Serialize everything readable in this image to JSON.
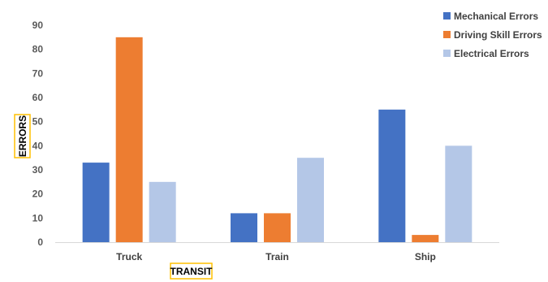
{
  "chart_data": {
    "type": "bar",
    "categories": [
      "Truck",
      "Train",
      "Ship"
    ],
    "series": [
      {
        "name": "Mechanical Errors",
        "values": [
          33,
          12,
          55
        ],
        "color": "#4472c4"
      },
      {
        "name": "Driving Skill Errors",
        "values": [
          85,
          12,
          3
        ],
        "color": "#ed7d31"
      },
      {
        "name": "Electrical Errors",
        "values": [
          25,
          35,
          40
        ],
        "color": "#b4c7e7"
      }
    ],
    "xlabel": "TRANSIT",
    "ylabel": "ERRORS",
    "ylim": [
      0,
      90
    ],
    "yticks": [
      0,
      10,
      20,
      30,
      40,
      50,
      60,
      70,
      80,
      90
    ],
    "grid": false,
    "legend_position": "top-right",
    "axis_title_box_color": "#ffc000"
  }
}
